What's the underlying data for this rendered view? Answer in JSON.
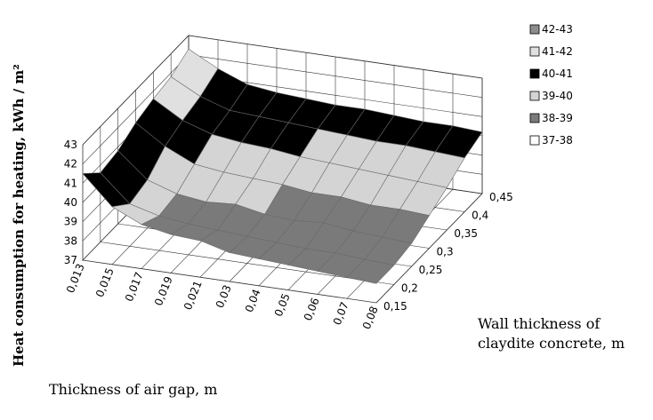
{
  "chart_data": {
    "type": "surface3d",
    "title": "",
    "zlabel": "Heat consumption for heating, kWh / m²",
    "xlabel": "Thickness of air gap, m",
    "ylabel_line1": "Wall thickness of",
    "ylabel_line2": "claydite concrete, m",
    "x_ticks": [
      "0,013",
      "0,015",
      "0,017",
      "0,019",
      "0,021",
      "0,03",
      "0,04",
      "0,05",
      "0,06",
      "0,07",
      "0,08"
    ],
    "y_ticks": [
      "0,15",
      "0,2",
      "0,25",
      "0,3",
      "0,35",
      "0,4",
      "0,45"
    ],
    "z_ticks": [
      "37",
      "38",
      "39",
      "40",
      "41",
      "42",
      "43"
    ],
    "zlim": [
      37,
      43
    ],
    "legend": [
      {
        "label": "42-43",
        "color": "#8c8c8c"
      },
      {
        "label": "41-42",
        "color": "#e0e0e0"
      },
      {
        "label": "40-41",
        "color": "#000000"
      },
      {
        "label": "39-40",
        "color": "#d4d4d4"
      },
      {
        "label": "38-39",
        "color": "#7a7a7a"
      },
      {
        "label": "37-38",
        "color": "#ffffff"
      }
    ],
    "surface": [
      [
        41.5,
        40.6,
        40.8,
        41.3,
        41.6,
        41.8,
        42.3
      ],
      [
        40.0,
        39.2,
        39.5,
        40.3,
        40.7,
        41.0,
        41.5
      ],
      [
        39.3,
        38.8,
        39.0,
        39.6,
        40.2,
        40.5,
        40.9
      ],
      [
        39.0,
        38.6,
        38.8,
        39.4,
        40.0,
        40.4,
        40.7
      ],
      [
        38.9,
        38.5,
        38.9,
        39.3,
        39.9,
        40.3,
        40.6
      ],
      [
        38.5,
        38.4,
        38.6,
        39.2,
        39.7,
        40.2,
        40.5
      ],
      [
        38.4,
        38.3,
        38.5,
        39.0,
        39.6,
        40.1,
        40.5
      ],
      [
        38.3,
        38.2,
        38.6,
        39.0,
        39.5,
        40.0,
        40.4
      ],
      [
        38.2,
        38.2,
        38.4,
        38.8,
        39.4,
        40.0,
        40.3
      ],
      [
        38.1,
        38.1,
        38.3,
        38.8,
        39.3,
        39.9,
        40.3
      ],
      [
        38.0,
        38.0,
        38.2,
        38.7,
        39.2,
        39.8,
        40.2
      ]
    ]
  }
}
